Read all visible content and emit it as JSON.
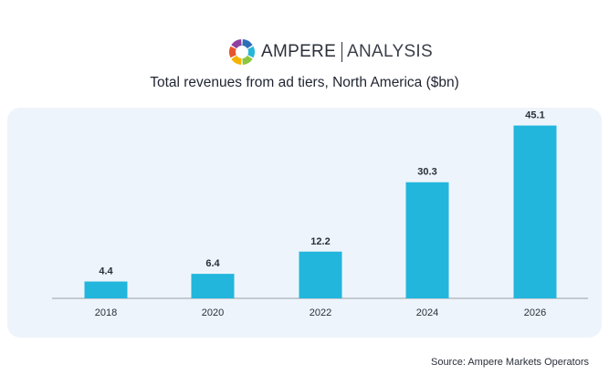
{
  "brand": {
    "name_primary": "AMPERE",
    "name_secondary": "ANALYSIS",
    "logo_icon": "ampere-ring-logo",
    "logo_colors": [
      "#2b6fb8",
      "#29b6d9",
      "#8cc63f",
      "#f4b400",
      "#e8542a",
      "#8e3fa0"
    ]
  },
  "chart_data": {
    "type": "bar",
    "title": "Total revenues from ad tiers, North America ($bn)",
    "xlabel": "",
    "ylabel": "",
    "categories": [
      "2018",
      "2020",
      "2022",
      "2024",
      "2026"
    ],
    "values": [
      4.4,
      6.4,
      12.2,
      30.3,
      45.1
    ],
    "data_labels": [
      "4.4",
      "6.4",
      "12.2",
      "30.3",
      "45.1"
    ],
    "ylim": [
      0,
      50
    ],
    "grid": false,
    "legend": "none",
    "bar_color": "#22b6dc",
    "axis_color": "#9aa0a8",
    "background_color": "#eef4fb"
  },
  "source": "Source: Ampere Markets Operators"
}
